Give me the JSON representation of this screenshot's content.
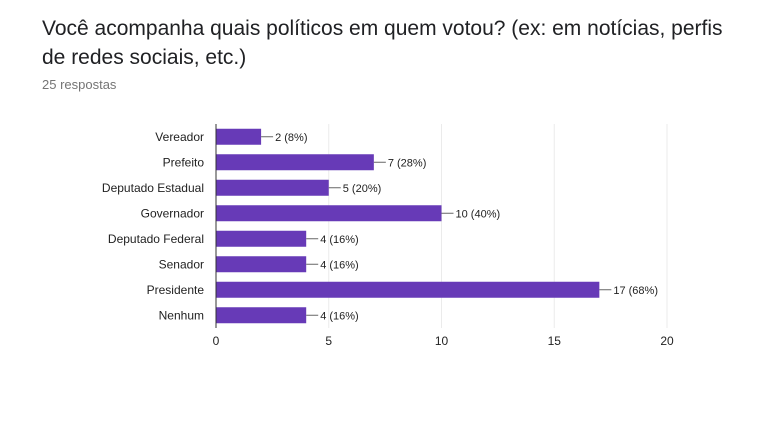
{
  "question": {
    "title": "Você acompanha quais políticos em quem votou? (ex: em notícias, perfis de redes sociais, etc.)",
    "response_count": "25 respostas"
  },
  "colors": {
    "bar": "#673ab7",
    "grid": "#ebebeb",
    "axis": "#333333",
    "connector": "#666666"
  },
  "chart_data": {
    "type": "bar",
    "orientation": "horizontal",
    "title": "",
    "xlabel": "",
    "ylabel": "",
    "categories": [
      "Vereador",
      "Prefeito",
      "Deputado Estadual",
      "Governador",
      "Deputado Federal",
      "Senador",
      "Presidente",
      "Nenhum"
    ],
    "values": [
      2,
      7,
      5,
      10,
      4,
      4,
      17,
      4
    ],
    "data_labels": [
      "2 (8%)",
      "7 (28%)",
      "5 (20%)",
      "10 (40%)",
      "4 (16%)",
      "4 (16%)",
      "17 (68%)",
      "4 (16%)"
    ],
    "xlim": [
      0,
      20
    ],
    "xticks": [
      0,
      5,
      10,
      15,
      20
    ],
    "xtick_labels": [
      "0",
      "5",
      "10",
      "15",
      "20"
    ],
    "grid": true,
    "legend": "none"
  }
}
